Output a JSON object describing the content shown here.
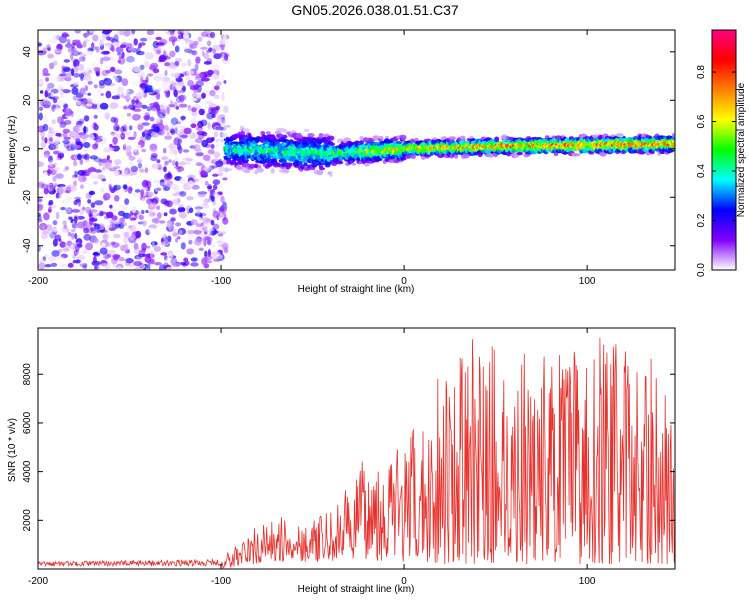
{
  "page": {
    "title": "GN05.2026.038.01.51.C37"
  },
  "chart_data": [
    {
      "type": "heatmap",
      "title": "GN05.2026.038.01.51.C37",
      "xlabel": "Height of straight line (km)",
      "ylabel": "Frequency (Hz)",
      "xlim": [
        -200,
        148
      ],
      "ylim": [
        -50,
        49
      ],
      "xticks": [
        -200,
        -100,
        0,
        100
      ],
      "yticks": [
        -40,
        -20,
        0,
        20,
        40
      ],
      "colorbar": {
        "label": "Normalized spectral amplitude",
        "range": [
          0,
          0.97
        ],
        "ticks": [
          0.0,
          0.2,
          0.4,
          0.6,
          0.8
        ],
        "colormap": [
          "#ffffff",
          "#8000ff",
          "#0000ff",
          "#00ffff",
          "#00ff00",
          "#ffff00",
          "#ff8000",
          "#ff0000",
          "#ff0080"
        ]
      },
      "regions": [
        {
          "x_range": [
            -200,
            -97
          ],
          "description_amplitude": [
            0.0,
            0.25
          ],
          "frequency_spread_hz": [
            -50,
            49
          ]
        },
        {
          "x_range": [
            -97,
            148
          ],
          "center_frequency_hz": [
            [
              -97,
              0
            ],
            [
              -40,
              -2
            ],
            [
              0,
              0
            ],
            [
              50,
              1
            ],
            [
              148,
              2
            ]
          ],
          "peak_amplitude": [
            [
              -97,
              0.5
            ],
            [
              -40,
              0.55
            ],
            [
              0,
              0.8
            ],
            [
              50,
              0.9
            ],
            [
              148,
              0.95
            ]
          ]
        }
      ]
    },
    {
      "type": "line",
      "xlabel": "Height of straight line (km)",
      "ylabel": "SNR (10 * v/v)",
      "xlim": [
        -200,
        148
      ],
      "ylim": [
        0,
        9900
      ],
      "xticks": [
        -200,
        -100,
        0,
        100
      ],
      "yticks": [
        2000,
        4000,
        6000,
        8000
      ],
      "series": [
        {
          "color": "#e8302c",
          "envelope_x": [
            -200,
            -150,
            -100,
            -90,
            -80,
            -70,
            -60,
            -50,
            -40,
            -30,
            -20,
            -10,
            0,
            10,
            20,
            30,
            40,
            50,
            60,
            70,
            80,
            90,
            100,
            110,
            120,
            130,
            140,
            148
          ],
          "envelope_max": [
            300,
            350,
            400,
            1200,
            1800,
            2100,
            2200,
            2000,
            2400,
            3500,
            4800,
            5000,
            5400,
            6100,
            8900,
            8800,
            9700,
            9300,
            8600,
            9300,
            9100,
            8900,
            9400,
            9900,
            9100,
            8700,
            8600,
            5500
          ],
          "envelope_min": [
            0,
            0,
            0,
            100,
            200,
            300,
            300,
            300,
            300,
            400,
            400,
            300,
            200,
            200,
            200,
            200,
            200,
            200,
            200,
            200,
            200,
            200,
            200,
            200,
            200,
            200,
            200,
            200
          ]
        }
      ]
    }
  ]
}
